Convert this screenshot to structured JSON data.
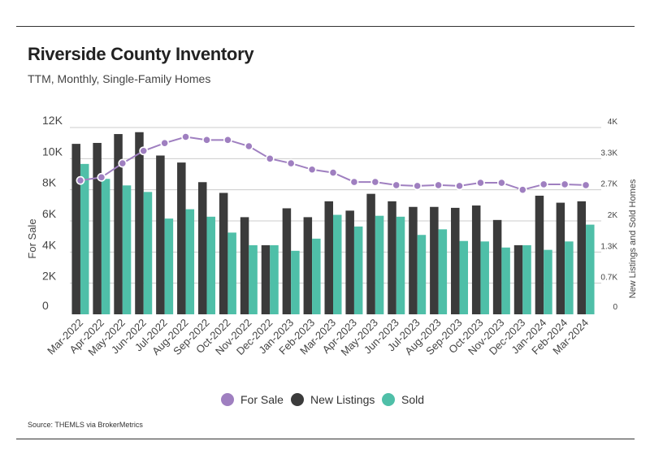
{
  "title": "Riverside County Inventory",
  "subtitle": "TTM, Monthly, Single-Family Homes",
  "source": "Source:  THEMLS via BrokerMetrics",
  "colors": {
    "for_sale": "#9f7fc0",
    "new_listings": "#3b3b3b",
    "sold": "#4fbfa8",
    "grid": "#cccccc"
  },
  "chart_data": {
    "type": "bar",
    "categories": [
      "Mar-2022",
      "Apr-2022",
      "May-2022",
      "Jun-2022",
      "Jul-2022",
      "Aug-2022",
      "Sep-2022",
      "Oct-2022",
      "Nov-2022",
      "Dec-2022",
      "Jan-2023",
      "Feb-2023",
      "Mar-2023",
      "Apr-2023",
      "May-2023",
      "Jun-2023",
      "Jul-2023",
      "Aug-2023",
      "Sep-2023",
      "Oct-2023",
      "Nov-2023",
      "Dec-2023",
      "Jan-2024",
      "Feb-2024",
      "Mar-2024"
    ],
    "left_axis": {
      "label": "For Sale",
      "ticks": [
        "0",
        "2K",
        "4K",
        "6K",
        "8K",
        "10K",
        "12K"
      ],
      "ylim": [
        0,
        12000
      ]
    },
    "right_axis": {
      "label": "New Listings and Sold Homes",
      "ticks": [
        "0",
        "0.7K",
        "1.3K",
        "2K",
        "2.7K",
        "3.3K",
        "4K"
      ],
      "ylim": [
        0,
        4000
      ]
    },
    "series": [
      {
        "name": "For Sale",
        "type": "line",
        "axis": "left",
        "values": [
          8600,
          8800,
          9700,
          10500,
          11000,
          11400,
          11200,
          11200,
          10800,
          10000,
          9700,
          9300,
          9100,
          8500,
          8500,
          8300,
          8250,
          8300,
          8250,
          8450,
          8450,
          8000,
          8350,
          8350,
          8300
        ]
      },
      {
        "name": "New Listings",
        "type": "bar",
        "axis": "right",
        "values": [
          3650,
          3670,
          3860,
          3900,
          3400,
          3250,
          2830,
          2600,
          2080,
          1480,
          2270,
          2080,
          2420,
          2220,
          2580,
          2420,
          2300,
          2300,
          2280,
          2330,
          2020,
          1480,
          2540,
          2390,
          2420
        ]
      },
      {
        "name": "Sold",
        "type": "bar",
        "axis": "right",
        "values": [
          3220,
          2900,
          2760,
          2620,
          2050,
          2250,
          2090,
          1750,
          1480,
          1480,
          1360,
          1620,
          2130,
          1880,
          2110,
          2090,
          1700,
          1820,
          1570,
          1560,
          1430,
          1480,
          1380,
          1560,
          1920
        ]
      }
    ],
    "legend": {
      "position": "bottom",
      "entries": [
        "For Sale",
        "New Listings",
        "Sold"
      ]
    },
    "grid": true
  }
}
